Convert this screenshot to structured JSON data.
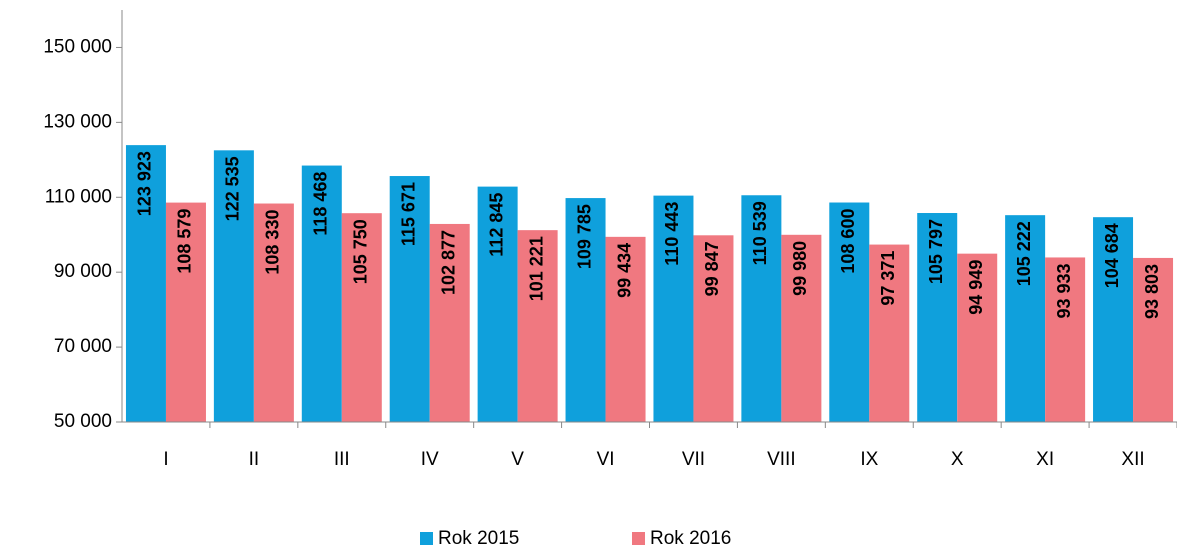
{
  "chart_data": {
    "type": "bar",
    "categories": [
      "I",
      "II",
      "III",
      "IV",
      "V",
      "VI",
      "VII",
      "VIII",
      "IX",
      "X",
      "XI",
      "XII"
    ],
    "series": [
      {
        "name": "Rok 2015",
        "color": "#0fa0dc",
        "values": [
          123923,
          122535,
          118468,
          115671,
          112845,
          109785,
          110443,
          110539,
          108600,
          105797,
          105222,
          104684
        ],
        "value_labels": [
          "123 923",
          "122 535",
          "118 468",
          "115 671",
          "112 845",
          "109 785",
          "110 443",
          "110 539",
          "108 600",
          "105 797",
          "105 222",
          "104 684"
        ]
      },
      {
        "name": "Rok 2016",
        "color": "#f07880",
        "values": [
          108579,
          108330,
          105750,
          102877,
          101221,
          99434,
          99847,
          99980,
          97371,
          94949,
          93933,
          93803
        ],
        "value_labels": [
          "108 579",
          "108 330",
          "105 750",
          "102 877",
          "101 221",
          "99 434",
          "99 847",
          "99 980",
          "97 371",
          "94 949",
          "93 933",
          "93 803"
        ]
      }
    ],
    "ylim": [
      50000,
      160000
    ],
    "yticks": [
      {
        "value": 50000,
        "label": "50 000"
      },
      {
        "value": 70000,
        "label": "70 000"
      },
      {
        "value": 90000,
        "label": "90 000"
      },
      {
        "value": 110000,
        "label": "110 000"
      },
      {
        "value": 130000,
        "label": "130 000"
      },
      {
        "value": 150000,
        "label": "150 000"
      }
    ],
    "legend": "bottom"
  }
}
